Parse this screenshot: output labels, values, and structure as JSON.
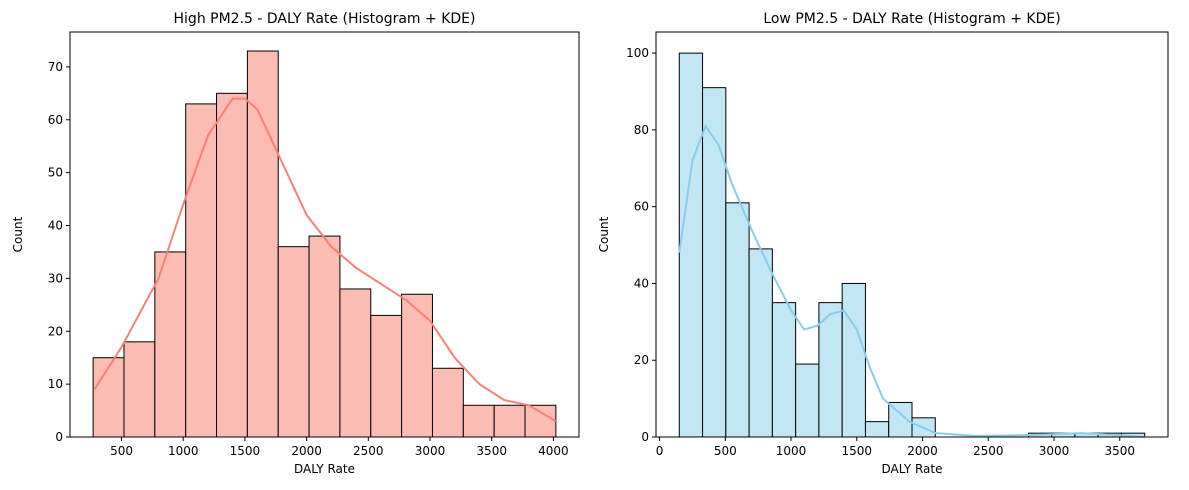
{
  "chart_data": [
    {
      "type": "histogram",
      "title": "High PM2.5 - DALY Rate (Histogram + KDE)",
      "x_label": "DALY Rate",
      "y_label": "Count",
      "bins": [
        270,
        520,
        770,
        1020,
        1270,
        1520,
        1770,
        2020,
        2270,
        2520,
        2770,
        3020,
        3270,
        3520,
        3770,
        4020
      ],
      "values": [
        15,
        18,
        35,
        63,
        65,
        73,
        36,
        38,
        28,
        23,
        27,
        13,
        6,
        6,
        6
      ],
      "kde_x": [
        280,
        500,
        800,
        1000,
        1200,
        1400,
        1500,
        1600,
        1800,
        2000,
        2200,
        2400,
        2600,
        2800,
        3000,
        3200,
        3400,
        3600,
        3800,
        4020
      ],
      "kde_values": [
        9,
        17,
        30,
        44,
        57,
        64,
        64,
        62,
        52,
        42,
        36,
        32,
        29,
        26,
        22,
        15,
        10,
        7,
        6,
        3
      ],
      "color": "#fa8072",
      "bar_color": "#fbbcb4",
      "xlim": [
        82.5,
        4207.5
      ],
      "xticks": [
        500,
        1000,
        1500,
        2000,
        2500,
        3000,
        3500,
        4000
      ],
      "ylim": [
        0,
        76.6
      ],
      "yticks": [
        0,
        10,
        20,
        30,
        40,
        50,
        60,
        70
      ]
    },
    {
      "type": "histogram",
      "title": "Low PM2.5 - DALY Rate (Histogram + KDE)",
      "x_label": "DALY Rate",
      "y_label": "Count",
      "bins": [
        150,
        327,
        504,
        681,
        858,
        1035,
        1212,
        1389,
        1566,
        1743,
        1920,
        2097,
        2274,
        2451,
        2628,
        2805,
        2982,
        3159,
        3336,
        3513,
        3690
      ],
      "values": [
        100,
        91,
        61,
        49,
        35,
        19,
        35,
        40,
        4,
        9,
        5,
        0,
        0,
        0,
        0,
        1,
        1,
        1,
        1,
        1
      ],
      "kde_x": [
        150,
        250,
        350,
        450,
        550,
        700,
        850,
        1000,
        1100,
        1200,
        1300,
        1400,
        1500,
        1600,
        1700,
        1900,
        2100,
        2400,
        2800,
        3200,
        3500,
        3690
      ],
      "kde_values": [
        48,
        72,
        81,
        76,
        66,
        54,
        43,
        33,
        28,
        29,
        32,
        33,
        28,
        18,
        10,
        4,
        1,
        0.3,
        0.5,
        1,
        0.5,
        0
      ],
      "color": "#87ceeb",
      "bar_color": "#c3e6f5",
      "xlim": [
        -27,
        3867
      ],
      "xticks": [
        0,
        500,
        1000,
        1500,
        2000,
        2500,
        3000,
        3500
      ],
      "ylim": [
        0,
        105.5
      ],
      "yticks": [
        0,
        20,
        40,
        60,
        80,
        100
      ]
    }
  ]
}
